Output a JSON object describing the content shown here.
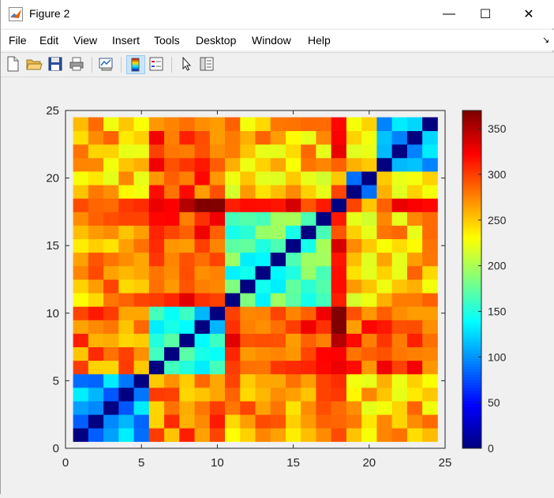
{
  "window": {
    "title": "Figure 2"
  },
  "window_buttons": {
    "minimize": "—",
    "maximize": "☐",
    "close": "✕"
  },
  "menu": [
    "File",
    "Edit",
    "View",
    "Insert",
    "Tools",
    "Desktop",
    "Window",
    "Help"
  ],
  "menu_extra": "↘",
  "toolbar": {
    "buttons": [
      "new-figure",
      "open-file",
      "save",
      "print",
      "link-plot",
      "insert-colorbar",
      "insert-legend",
      "edit-plot",
      "property-inspector"
    ],
    "active": "insert-colorbar"
  },
  "chart_data": {
    "type": "heatmap",
    "title": "",
    "xlabel": "",
    "ylabel": "",
    "xlim": [
      0,
      25
    ],
    "ylim": [
      0,
      25
    ],
    "xticks": [
      0,
      5,
      10,
      15,
      20,
      25
    ],
    "yticks": [
      0,
      5,
      10,
      15,
      20,
      25
    ],
    "cells_x": [
      1,
      24
    ],
    "cells_y": [
      1,
      24
    ],
    "colormap": "jet",
    "clim": [
      0,
      370
    ],
    "colorbar_ticks": [
      0,
      50,
      100,
      150,
      200,
      250,
      300,
      350
    ],
    "blocks": [
      [
        1,
        5
      ],
      [
        6,
        10
      ],
      [
        11,
        17
      ],
      [
        18,
        18
      ],
      [
        19,
        20
      ],
      [
        21,
        24
      ]
    ],
    "block_means": [
      [
        110,
        280,
        265,
        300,
        255,
        255
      ],
      [
        280,
        145,
        300,
        355,
        295,
        300
      ],
      [
        265,
        300,
        165,
        320,
        240,
        255
      ],
      [
        300,
        355,
        320,
        0,
        280,
        310
      ],
      [
        255,
        295,
        240,
        280,
        110,
        240
      ],
      [
        255,
        300,
        255,
        310,
        240,
        110
      ]
    ],
    "grid": false
  }
}
